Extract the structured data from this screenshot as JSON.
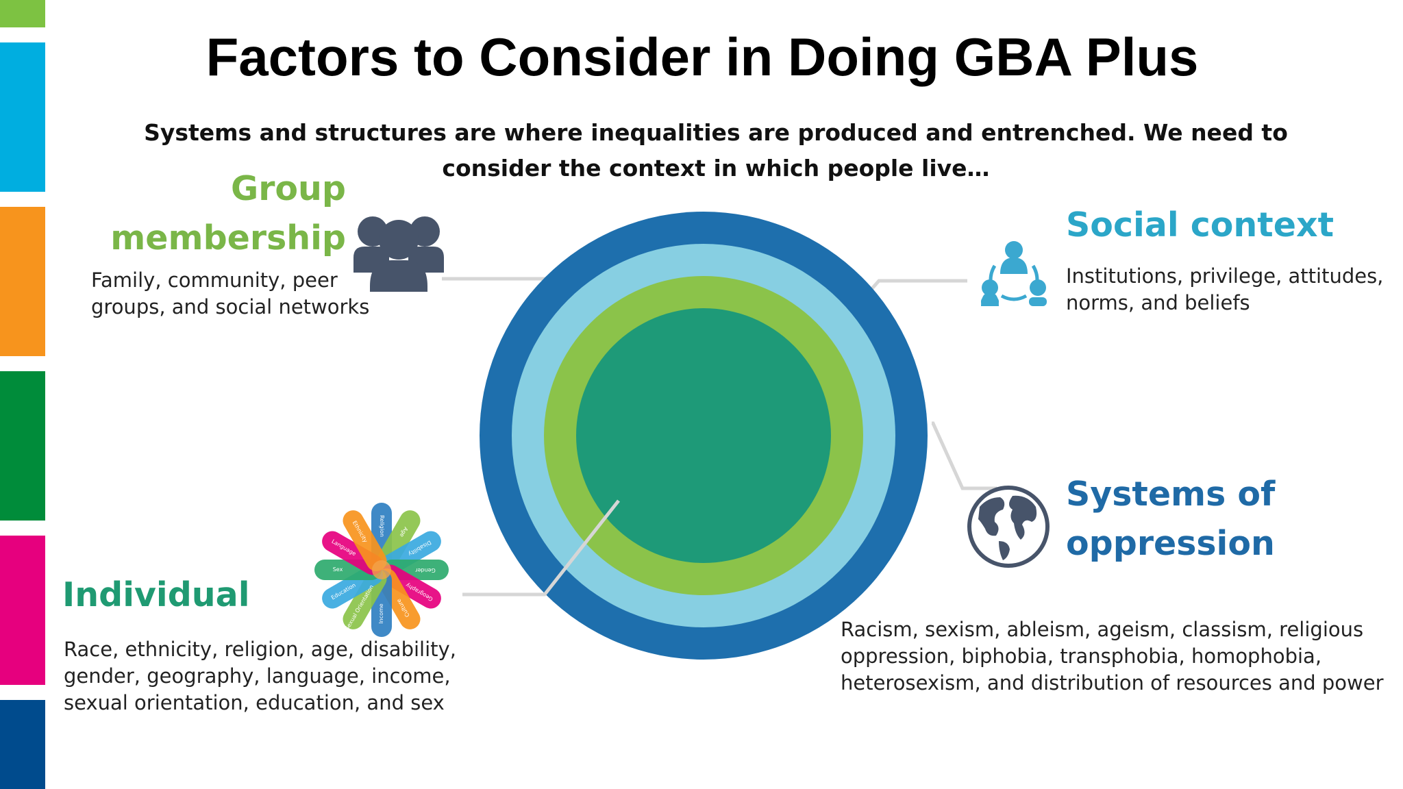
{
  "title": "Factors to Consider in Doing GBA Plus",
  "subtitle_line1": "Systems and structures are where inequalities are produced and entrenched. We need to",
  "subtitle_line2": "consider the context in which people live…",
  "colors": {
    "strip_lime": "#7dc242",
    "strip_blue": "#00aee0",
    "strip_orange": "#f7941d",
    "strip_green": "#008c3a",
    "strip_magenta": "#e6007e",
    "strip_navy": "#004b8d",
    "ring_outer": "#1e6fad",
    "ring_light": "#87cfe2",
    "ring_green": "#8bc34a",
    "ring_core": "#1e9a78",
    "group_heading": "#7ab648",
    "social_heading": "#2ba6c8",
    "systems_heading": "#1f6aa6",
    "individual_heading": "#1f9a72"
  },
  "group": {
    "heading_line1": "Group",
    "heading_line2": "membership",
    "text_line1": "Family, community, peer",
    "text_line2": "groups, and social networks",
    "icon": "people-group-icon"
  },
  "social": {
    "heading": "Social context",
    "text_line1": "Institutions, privilege, attitudes,",
    "text_line2": "norms, and beliefs",
    "icon": "network-people-icon"
  },
  "systems": {
    "heading_line1": "Systems of",
    "heading_line2": "oppression",
    "text_line1": "Racism, sexism, ableism, ageism, classism, religious",
    "text_line2": "oppression, biphobia, transphobia, homophobia,",
    "text_line3": "heterosexism, and distribution of resources and power",
    "icon": "globe-icon"
  },
  "individual": {
    "heading": "Individual",
    "text_line1": "Race, ethnicity, religion, age, disability,",
    "text_line2": "gender, geography, language, income,",
    "text_line3": "sexual orientation, education, and sex",
    "icon": "identity-petals-icon",
    "petal_labels": [
      "Religion",
      "Age",
      "Disability",
      "Gender",
      "Geography",
      "Culture",
      "Income",
      "Sexual Orientation",
      "Education",
      "Sex",
      "Language",
      "Ethnicity"
    ]
  }
}
